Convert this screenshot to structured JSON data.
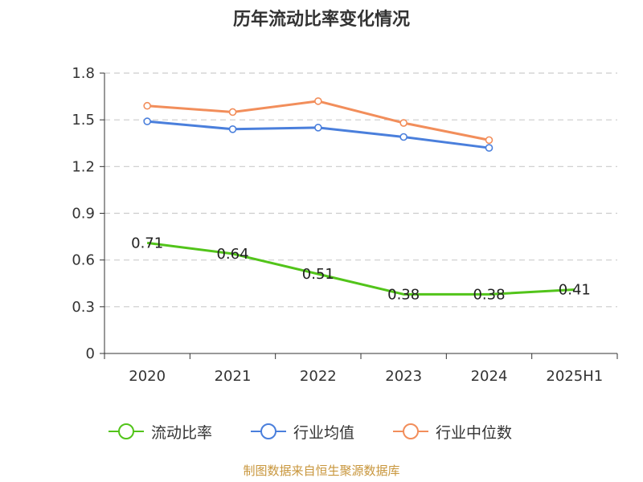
{
  "title": "历年流动比率变化情况",
  "footer": "制图数据来自恒生聚源数据库",
  "chart_data": {
    "type": "line",
    "title": "历年流动比率变化情况",
    "categories": [
      "2020",
      "2021",
      "2022",
      "2023",
      "2024",
      "2025H1"
    ],
    "ylim": [
      0,
      1.8
    ],
    "yticks": [
      "0",
      "0.3",
      "0.6",
      "0.9",
      "1.2",
      "1.5",
      "1.8"
    ],
    "grid": true,
    "legend_position": "bottom",
    "series": [
      {
        "name": "流动比率",
        "color": "#52c41a",
        "labels": true,
        "values": [
          0.71,
          0.64,
          0.51,
          0.38,
          0.38,
          0.41
        ],
        "value_labels": [
          "0.71",
          "0.64",
          "0.51",
          "0.38",
          "0.38",
          "0.41"
        ]
      },
      {
        "name": "行业均值",
        "color": "#4a7fdc",
        "labels": false,
        "values": [
          1.49,
          1.44,
          1.45,
          1.39,
          1.32,
          null
        ]
      },
      {
        "name": "行业中位数",
        "color": "#f28e5b",
        "labels": false,
        "values": [
          1.59,
          1.55,
          1.62,
          1.48,
          1.37,
          null
        ]
      }
    ]
  }
}
